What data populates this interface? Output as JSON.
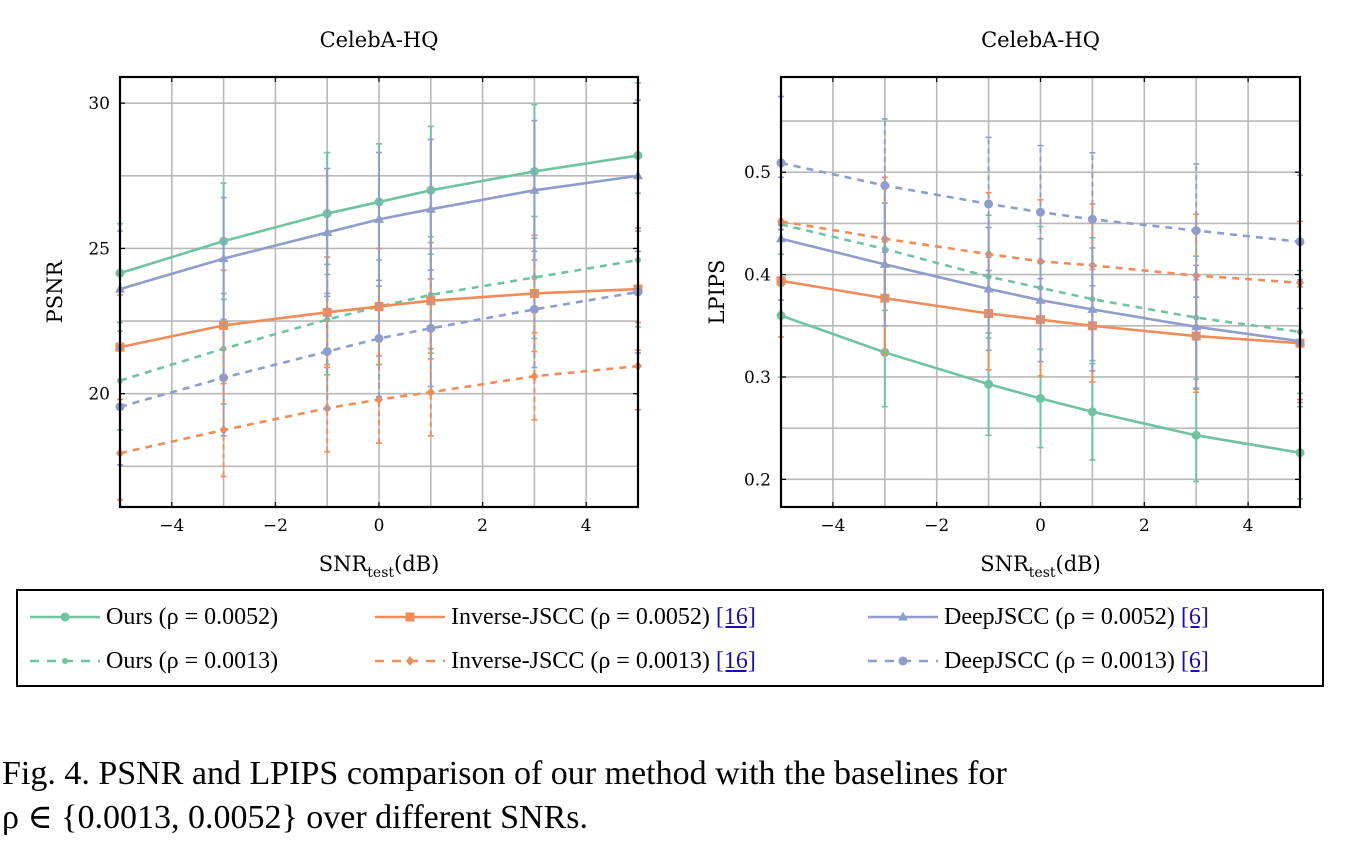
{
  "chart_data": [
    {
      "type": "line",
      "title": "CelebA-HQ",
      "xlabel": "SNR_test(dB)",
      "xlabel_main": "SNR",
      "xlabel_sub": "test",
      "xlabel_unit": "(dB)",
      "ylabel": "PSNR",
      "xlim": [
        -5,
        5
      ],
      "ylim": [
        16.1,
        30.9
      ],
      "xticks": [
        -4,
        -2,
        0,
        2,
        4
      ],
      "xtick_labels": [
        "−4",
        "−2",
        "0",
        "2",
        "4"
      ],
      "yticks": [
        20,
        25,
        30
      ],
      "ytick_labels": [
        "20",
        "25",
        "30"
      ],
      "grid": true,
      "x": [
        -5,
        -3,
        -1,
        0,
        1,
        3,
        5
      ],
      "series": [
        {
          "key": "ours_52",
          "values": [
            24.15,
            25.25,
            26.2,
            26.6,
            27.0,
            27.65,
            28.2
          ],
          "err": [
            1.7,
            2.0,
            2.1,
            2.0,
            2.2,
            2.3,
            2.5
          ]
        },
        {
          "key": "ours_13",
          "values": [
            20.45,
            21.55,
            22.55,
            23.0,
            23.4,
            24.0,
            24.6
          ],
          "err": [
            1.7,
            1.9,
            1.9,
            2.0,
            2.0,
            2.1,
            2.3
          ]
        },
        {
          "key": "inv_52",
          "values": [
            21.6,
            22.35,
            22.8,
            23.0,
            23.2,
            23.45,
            23.6
          ],
          "err": [
            1.8,
            1.9,
            1.9,
            2.0,
            2.0,
            2.0,
            2.1
          ]
        },
        {
          "key": "inv_13",
          "values": [
            17.95,
            18.75,
            19.5,
            19.8,
            20.05,
            20.6,
            20.95
          ],
          "err": [
            1.6,
            1.6,
            1.5,
            1.5,
            1.5,
            1.5,
            1.5
          ]
        },
        {
          "key": "deep_52",
          "values": [
            23.6,
            24.65,
            25.55,
            26.0,
            26.35,
            27.0,
            27.5
          ],
          "err": [
            2.0,
            2.1,
            2.2,
            2.3,
            2.4,
            2.4,
            2.6
          ]
        },
        {
          "key": "deep_13",
          "values": [
            19.55,
            20.55,
            21.45,
            21.9,
            22.25,
            22.9,
            23.5
          ],
          "err": [
            2.0,
            2.0,
            2.0,
            2.0,
            2.0,
            2.0,
            2.1
          ]
        }
      ]
    },
    {
      "type": "line",
      "title": "CelebA-HQ",
      "xlabel": "SNR_test(dB)",
      "xlabel_main": "SNR",
      "xlabel_sub": "test",
      "xlabel_unit": "(dB)",
      "ylabel": "LPIPS",
      "xlim": [
        -5,
        5
      ],
      "ylim": [
        0.173,
        0.593
      ],
      "xticks": [
        -4,
        -2,
        0,
        2,
        4
      ],
      "xtick_labels": [
        "−4",
        "−2",
        "0",
        "2",
        "4"
      ],
      "yticks": [
        0.2,
        0.3,
        0.4,
        0.5
      ],
      "ytick_labels": [
        "0.2",
        "0.3",
        "0.4",
        "0.5"
      ],
      "grid": true,
      "x": [
        -5,
        -3,
        -1,
        0,
        1,
        3,
        5
      ],
      "series": [
        {
          "key": "ours_52",
          "values": [
            0.36,
            0.324,
            0.293,
            0.279,
            0.266,
            0.243,
            0.226
          ],
          "err": [
            0.06,
            0.053,
            0.05,
            0.048,
            0.047,
            0.045,
            0.045
          ]
        },
        {
          "key": "ours_13",
          "values": [
            0.449,
            0.425,
            0.398,
            0.387,
            0.376,
            0.358,
            0.344
          ],
          "err": [
            0.06,
            0.06,
            0.06,
            0.06,
            0.06,
            0.06,
            0.06
          ]
        },
        {
          "key": "inv_52",
          "values": [
            0.394,
            0.377,
            0.362,
            0.356,
            0.35,
            0.34,
            0.333
          ],
          "err": [
            0.055,
            0.055,
            0.055,
            0.055,
            0.055,
            0.055,
            0.055
          ]
        },
        {
          "key": "inv_13",
          "values": [
            0.452,
            0.435,
            0.42,
            0.413,
            0.409,
            0.399,
            0.392
          ],
          "err": [
            0.06,
            0.06,
            0.06,
            0.06,
            0.06,
            0.06,
            0.06
          ]
        },
        {
          "key": "deep_52",
          "values": [
            0.435,
            0.41,
            0.386,
            0.375,
            0.366,
            0.349,
            0.335
          ],
          "err": [
            0.06,
            0.06,
            0.06,
            0.06,
            0.06,
            0.06,
            0.06
          ]
        },
        {
          "key": "deep_13",
          "values": [
            0.509,
            0.487,
            0.469,
            0.461,
            0.454,
            0.443,
            0.432
          ],
          "err": [
            0.065,
            0.065,
            0.065,
            0.065,
            0.065,
            0.065,
            0.065
          ]
        }
      ]
    }
  ],
  "styles": {
    "ours_52": {
      "color": "#6fc3a0",
      "dash": false,
      "marker": "circle"
    },
    "ours_13": {
      "color": "#6fc3a0",
      "dash": true,
      "marker": "dot"
    },
    "inv_52": {
      "color": "#ef8c5a",
      "dash": false,
      "marker": "square"
    },
    "inv_13": {
      "color": "#ef8c5a",
      "dash": true,
      "marker": "diamond"
    },
    "deep_52": {
      "color": "#8f9dcb",
      "dash": false,
      "marker": "triangle"
    },
    "deep_13": {
      "color": "#8f9dcb",
      "dash": true,
      "marker": "circle"
    }
  },
  "legend": {
    "rows": [
      [
        {
          "key": "ours_52",
          "label": "Ours (ρ = 0.0052)",
          "ref": ""
        },
        {
          "key": "inv_52",
          "label": "Inverse-JSCC (ρ = 0.0052)",
          "ref": "[16]"
        },
        {
          "key": "deep_52",
          "label": "DeepJSCC (ρ = 0.0052)",
          "ref": "[6]"
        }
      ],
      [
        {
          "key": "ours_13",
          "label": "Ours (ρ = 0.0013)",
          "ref": ""
        },
        {
          "key": "inv_13",
          "label": "Inverse-JSCC (ρ = 0.0013)",
          "ref": "[16]"
        },
        {
          "key": "deep_13",
          "label": "DeepJSCC (ρ = 0.0013)",
          "ref": "[6]"
        }
      ]
    ]
  },
  "caption": {
    "line1": "Fig. 4.  PSNR and LPIPS comparison of our method with the baselines for",
    "line2": "ρ ∈ {0.0013, 0.0052} over different SNRs."
  }
}
